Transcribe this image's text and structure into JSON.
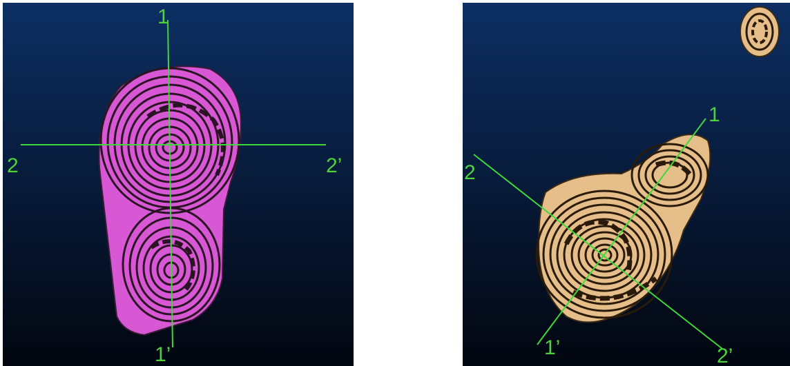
{
  "colors": {
    "background_top": "#0d2f63",
    "background_bottom": "#02060f",
    "left_part_fill": "#d757d4",
    "right_part_fill": "#e6be8a",
    "groove_stroke": "#2a1424",
    "section_line": "#3fd83a"
  },
  "left_view": {
    "labels": {
      "top": "1",
      "bottom": "1’",
      "left": "2",
      "right": "2’"
    }
  },
  "right_view": {
    "labels": {
      "top": "1",
      "bottom": "1’",
      "left": "2",
      "right": "2’"
    }
  }
}
